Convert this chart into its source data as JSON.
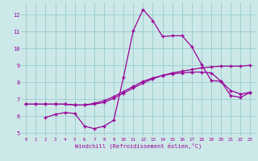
{
  "xlabel": "Windchill (Refroidissement éolien,°C)",
  "bg_color": "#cce8e8",
  "grid_color": "#99cccc",
  "line_color": "#990099",
  "xlim": [
    -0.5,
    23.5
  ],
  "ylim": [
    4.8,
    12.7
  ],
  "xticks": [
    0,
    1,
    2,
    3,
    4,
    5,
    6,
    7,
    8,
    9,
    10,
    11,
    12,
    13,
    14,
    15,
    16,
    17,
    18,
    19,
    20,
    21,
    22,
    23
  ],
  "yticks": [
    5,
    6,
    7,
    8,
    9,
    10,
    11,
    12
  ],
  "line1_x": [
    0,
    1,
    2,
    3,
    4,
    5,
    6,
    7,
    8,
    9,
    10,
    11,
    12,
    13,
    14,
    15,
    16,
    17,
    18,
    19,
    20,
    21,
    22,
    23
  ],
  "line1_y": [
    6.7,
    6.7,
    6.7,
    6.7,
    6.7,
    6.65,
    6.65,
    6.7,
    6.8,
    7.05,
    7.35,
    7.65,
    7.95,
    8.2,
    8.4,
    8.55,
    8.65,
    8.75,
    8.85,
    8.9,
    8.95,
    8.95,
    8.95,
    9.0
  ],
  "line2_x": [
    0,
    1,
    2,
    3,
    4,
    5,
    6,
    7,
    8,
    9,
    10,
    11,
    12,
    13,
    14,
    15,
    16,
    17,
    18,
    19,
    20,
    21,
    22,
    23
  ],
  "line2_y": [
    6.7,
    6.7,
    6.7,
    6.7,
    6.7,
    6.65,
    6.65,
    6.75,
    6.9,
    7.15,
    7.45,
    7.75,
    8.05,
    8.25,
    8.4,
    8.5,
    8.55,
    8.6,
    8.6,
    8.55,
    8.05,
    7.5,
    7.3,
    7.4
  ],
  "line3_x": [
    2,
    3,
    4,
    5,
    6,
    7,
    8,
    9,
    10,
    11,
    12,
    13,
    14,
    15,
    16,
    17,
    18,
    19,
    20,
    21,
    22,
    23
  ],
  "line3_y": [
    5.9,
    6.1,
    6.2,
    6.15,
    5.4,
    5.25,
    5.4,
    5.75,
    8.3,
    11.05,
    12.3,
    11.65,
    10.7,
    10.75,
    10.75,
    10.1,
    9.05,
    8.1,
    8.05,
    7.2,
    7.1,
    7.4
  ]
}
